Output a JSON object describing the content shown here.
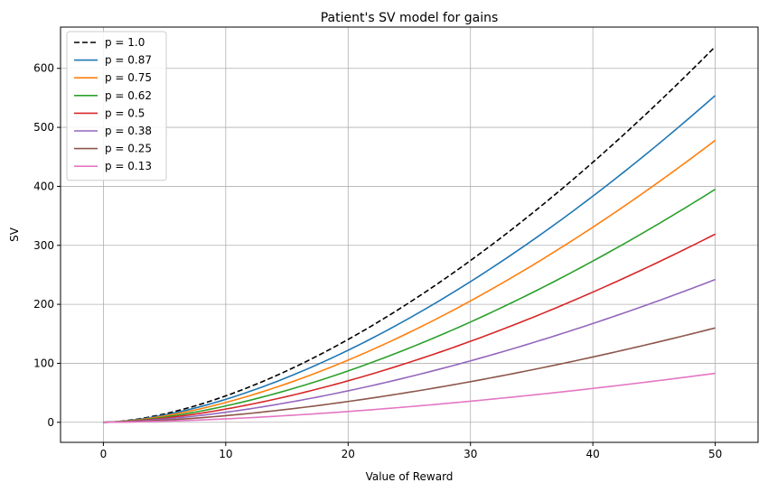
{
  "chart_data": {
    "type": "line",
    "title": "Patient's SV model for gains",
    "xlabel": "Value of Reward",
    "ylabel": "SV",
    "xlim": [
      -3.5,
      53.5
    ],
    "ylim": [
      -34,
      670
    ],
    "xticks": [
      0,
      10,
      20,
      30,
      40,
      50
    ],
    "yticks": [
      0,
      100,
      200,
      300,
      400,
      500,
      600
    ],
    "grid": true,
    "legend_position": "top-left",
    "x_range": [
      0,
      50
    ],
    "exponent": 1.65,
    "series": [
      {
        "name": "p = 1.0",
        "color": "#000000",
        "dash": true,
        "y_at_50": 637
      },
      {
        "name": "p = 0.87",
        "color": "#1f77b4",
        "dash": false,
        "y_at_50": 554
      },
      {
        "name": "p = 0.75",
        "color": "#ff7f0e",
        "dash": false,
        "y_at_50": 478
      },
      {
        "name": "p = 0.62",
        "color": "#2ca02c",
        "dash": false,
        "y_at_50": 395
      },
      {
        "name": "p = 0.5",
        "color": "#d62728",
        "dash": false,
        "y_at_50": 319
      },
      {
        "name": "p = 0.38",
        "color": "#9467bd",
        "dash": false,
        "y_at_50": 242
      },
      {
        "name": "p = 0.25",
        "color": "#8c564b",
        "dash": false,
        "y_at_50": 160
      },
      {
        "name": "p = 0.13",
        "color": "#e377c2",
        "dash": false,
        "y_at_50": 83
      }
    ]
  }
}
